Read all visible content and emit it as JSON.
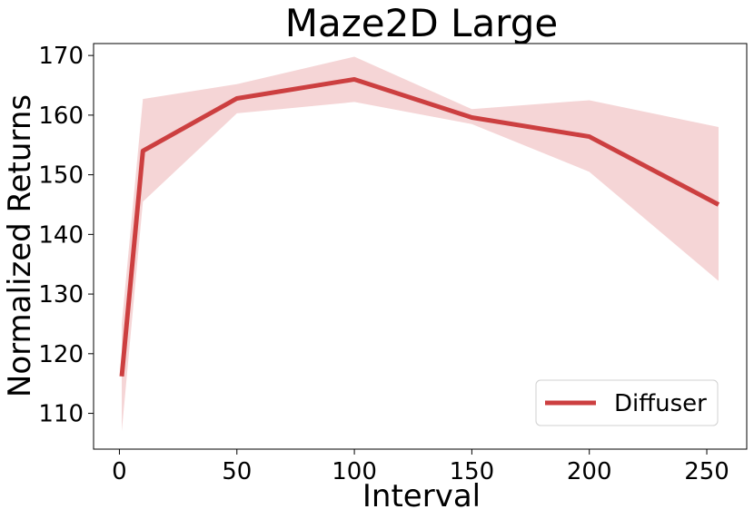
{
  "chart_data": {
    "type": "line",
    "title": "Maze2D Large",
    "xlabel": "Interval",
    "ylabel": "Normalized Returns",
    "xlim": [
      -11,
      267
    ],
    "ylim": [
      104,
      172
    ],
    "xticks": [
      0,
      50,
      100,
      150,
      200,
      250
    ],
    "yticks": [
      110,
      120,
      130,
      140,
      150,
      160,
      170
    ],
    "grid": false,
    "legend_position": "bottom-right",
    "series": [
      {
        "name": "Diffuser",
        "color": "#cc3f40",
        "band_color": "#f5d5d6",
        "x": [
          1,
          10,
          50,
          100,
          150,
          200,
          255
        ],
        "y": [
          116.2,
          154,
          162.8,
          166,
          159.6,
          156.4,
          145
        ],
        "y_lower": [
          107,
          145.5,
          160.3,
          162.2,
          158.5,
          150.5,
          132.2
        ],
        "y_upper": [
          125,
          162.7,
          165.2,
          169.8,
          161,
          162.5,
          158
        ]
      }
    ]
  }
}
